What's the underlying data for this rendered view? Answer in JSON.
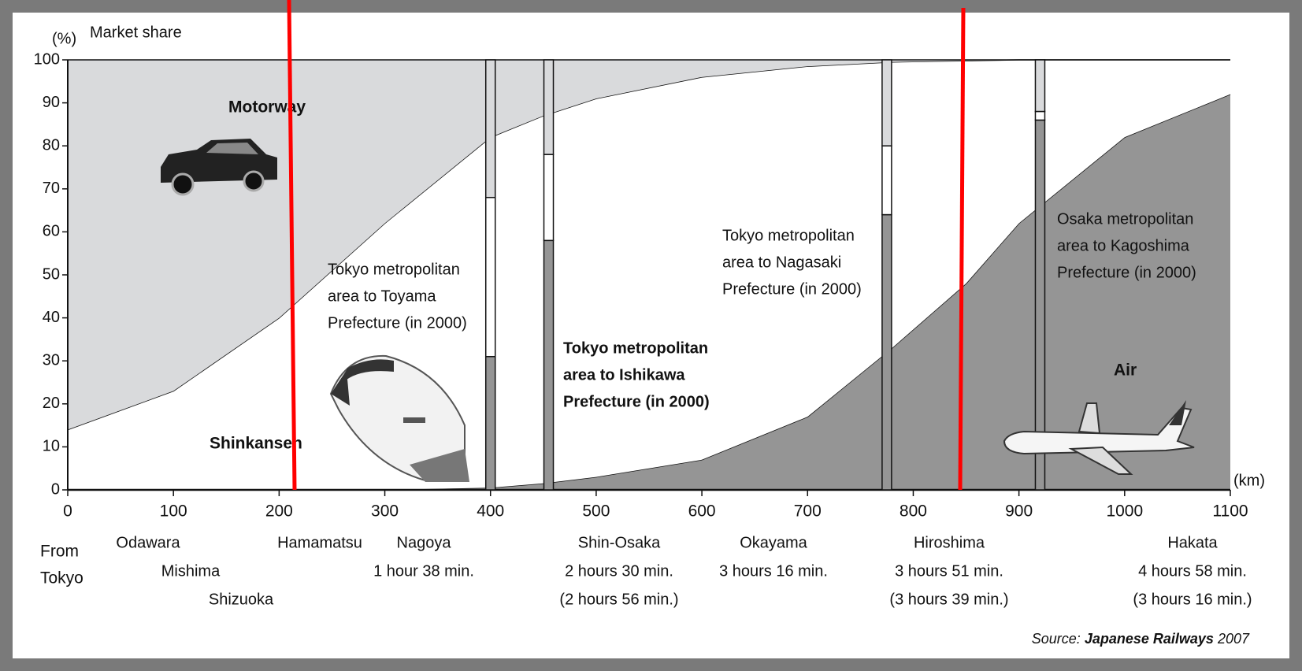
{
  "chart_data": {
    "type": "area",
    "y_unit": "(%)",
    "y_label": "Market share",
    "x_unit": "(km)",
    "x": [
      0,
      100,
      200,
      300,
      400,
      450,
      500,
      600,
      700,
      780,
      850,
      900,
      1000,
      1100
    ],
    "series": [
      {
        "name": "Air",
        "color": "#959595",
        "values": [
          0,
          0,
          0,
          0,
          0.5,
          1.5,
          3,
          7,
          17,
          33,
          48,
          62,
          82,
          92
        ]
      },
      {
        "name": "Shinkansen",
        "color": "#ffffff",
        "values": [
          14,
          23,
          40,
          62,
          81.5,
          85.5,
          88,
          89,
          81.5,
          66.5,
          51.8,
          38,
          18,
          8
        ]
      },
      {
        "name": "Motorway",
        "color": "#d9dadc",
        "values": [
          86,
          77,
          60,
          38,
          18,
          13,
          9,
          4,
          1.5,
          0.5,
          0.2,
          0,
          0,
          0
        ]
      }
    ],
    "xlim": [
      0,
      1100
    ],
    "xticks": [
      0,
      100,
      200,
      300,
      400,
      500,
      600,
      700,
      800,
      900,
      1000,
      1100
    ],
    "ylim": [
      0,
      100
    ],
    "yticks": [
      0,
      10,
      20,
      30,
      40,
      50,
      60,
      70,
      80,
      90,
      100
    ],
    "bars": [
      {
        "x": 400,
        "values": [
          31,
          37,
          32
        ],
        "lines": [
          "Tokyo metropolitan",
          "area to Toyama",
          "Prefecture (in 2000)"
        ]
      },
      {
        "x": 455,
        "values": [
          58,
          20,
          22
        ],
        "lines": [
          "Tokyo metropolitan",
          "area to Ishikawa",
          "Prefecture (in 2000)"
        ]
      },
      {
        "x": 775,
        "values": [
          64,
          16,
          20
        ],
        "lines": [
          "Tokyo metropolitan",
          "area to Nagasaki",
          "Prefecture (in 2000)"
        ]
      },
      {
        "x": 920,
        "values": [
          86,
          2,
          12
        ],
        "lines": [
          "Osaka metropolitan",
          "area to Kagoshima",
          "Prefecture (in 2000)"
        ]
      }
    ],
    "from_label": [
      "From",
      "Tokyo"
    ],
    "stations": [
      {
        "name": "Odawara",
        "times": []
      },
      {
        "name": "Mishima",
        "times": []
      },
      {
        "name": "Shizuoka",
        "times": []
      },
      {
        "name": "Hamamatsu",
        "times": []
      },
      {
        "name": "Nagoya",
        "times": [
          "1 hour 38 min."
        ]
      },
      {
        "name": "Shin-Osaka",
        "times": [
          "2 hours 30 min.",
          "(2 hours 56 min.)"
        ]
      },
      {
        "name": "Okayama",
        "times": [
          "3 hours 16 min."
        ]
      },
      {
        "name": "Hiroshima",
        "times": [
          "3 hours 51 min.",
          "(3 hours 39 min.)"
        ]
      },
      {
        "name": "Hakata",
        "times": [
          "4 hours 58 min.",
          "(3 hours 16 min.)"
        ]
      }
    ],
    "source": {
      "prefix": "Source:",
      "name": "Japanese Railways",
      "year": "2007"
    }
  }
}
